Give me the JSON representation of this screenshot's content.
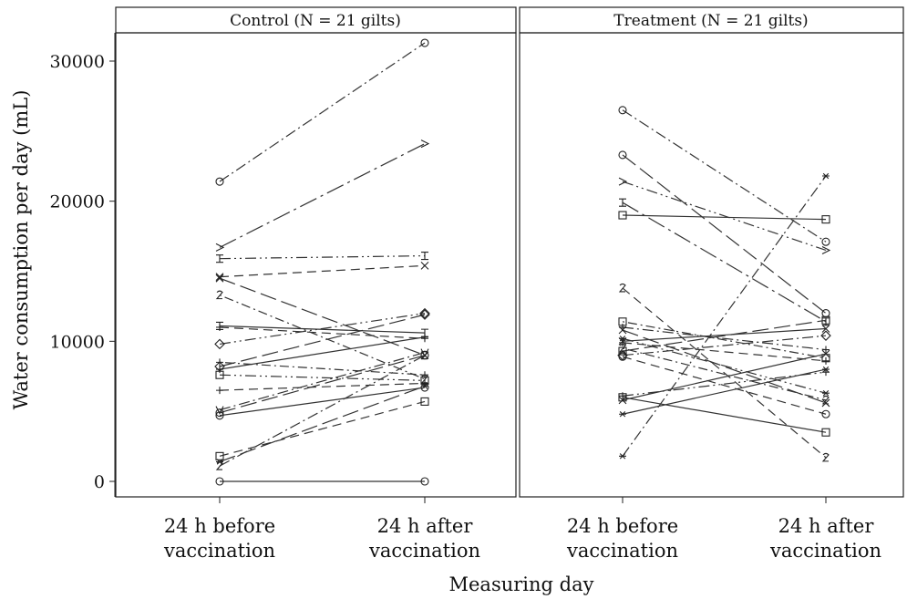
{
  "chart_data": {
    "type": "line",
    "ylabel": "Water consumption per day (mL)",
    "xlabel": "Measuring day",
    "ylim": [
      0,
      32000
    ],
    "yticks": [
      0,
      10000,
      20000,
      30000
    ],
    "categories": [
      {
        "line1": "24 h before",
        "line2": "vaccination"
      },
      {
        "line1": "24 h after",
        "line2": "vaccination"
      }
    ],
    "panels": [
      {
        "title": "Control (N = 21 gilts)",
        "series": [
          {
            "values": [
              21400,
              31300
            ],
            "marker": "o",
            "dash": "dashdot"
          },
          {
            "values": [
              16700,
              24100
            ],
            "marker": ">",
            "dash": "longdash-dot"
          },
          {
            "values": [
              15900,
              16100
            ],
            "marker": "I",
            "dash": "dashdotdot"
          },
          {
            "values": [
              14600,
              15400
            ],
            "marker": "x",
            "dash": "dashed"
          },
          {
            "values": [
              14500,
              9000
            ],
            "marker": "x",
            "dash": "longdash"
          },
          {
            "values": [
              13300,
              7300
            ],
            "marker": "2",
            "dash": "dotdash"
          },
          {
            "values": [
              11100,
              10600
            ],
            "marker": "I",
            "dash": "solid"
          },
          {
            "values": [
              11000,
              10200
            ],
            "marker": "+",
            "dash": "dashed"
          },
          {
            "values": [
              9800,
              12000
            ],
            "marker": "diamond",
            "dash": "dashdotdot"
          },
          {
            "values": [
              8500,
              7600
            ],
            "marker": "+",
            "dash": "dotdash"
          },
          {
            "values": [
              8200,
              11900
            ],
            "marker": "diamond",
            "dash": "longdash"
          },
          {
            "values": [
              8000,
              10300
            ],
            "marker": "+",
            "dash": "solid"
          },
          {
            "values": [
              7600,
              7200
            ],
            "marker": "square",
            "dash": "dashdotdot"
          },
          {
            "values": [
              6500,
              7000
            ],
            "marker": "+",
            "dash": "dashed"
          },
          {
            "values": [
              5100,
              9200
            ],
            "marker": "v",
            "dash": "dashdot"
          },
          {
            "values": [
              4900,
              9000
            ],
            "marker": "o",
            "dash": "longdash"
          },
          {
            "values": [
              4700,
              6700
            ],
            "marker": "o",
            "dash": "solid"
          },
          {
            "values": [
              1800,
              5700
            ],
            "marker": "square",
            "dash": "dashed"
          },
          {
            "values": [
              1400,
              6800
            ],
            "marker": "*",
            "dash": "longdash"
          },
          {
            "values": [
              1100,
              9000
            ],
            "marker": "2",
            "dash": "dashdot"
          },
          {
            "values": [
              0,
              0
            ],
            "marker": "o",
            "dash": "solid"
          }
        ]
      },
      {
        "title": "Treatment (N = 21 gilts)",
        "series": [
          {
            "values": [
              26500,
              17100
            ],
            "marker": "o",
            "dash": "dashdot"
          },
          {
            "values": [
              23300,
              12000
            ],
            "marker": "o",
            "dash": "longdash"
          },
          {
            "values": [
              21400,
              16500
            ],
            "marker": ">",
            "dash": "dashdotdot"
          },
          {
            "values": [
              19900,
              11400
            ],
            "marker": "I",
            "dash": "longdash-dot"
          },
          {
            "values": [
              19000,
              18700
            ],
            "marker": "square",
            "dash": "solid"
          },
          {
            "values": [
              13800,
              1700
            ],
            "marker": "2",
            "dash": "dashed"
          },
          {
            "values": [
              11400,
              8800
            ],
            "marker": "square",
            "dash": "dotdash"
          },
          {
            "values": [
              11000,
              9400
            ],
            "marker": "+",
            "dash": "dashdot"
          },
          {
            "values": [
              10800,
              5600
            ],
            "marker": "x",
            "dash": "longdash"
          },
          {
            "values": [
              10200,
              6300
            ],
            "marker": "*",
            "dash": "dashdotdot"
          },
          {
            "values": [
              10000,
              10900
            ],
            "marker": "x",
            "dash": "solid"
          },
          {
            "values": [
              9900,
              8600
            ],
            "marker": "+",
            "dash": "dashed"
          },
          {
            "values": [
              9500,
              5800
            ],
            "marker": "2",
            "dash": "dotdash"
          },
          {
            "values": [
              9300,
              11500
            ],
            "marker": "square",
            "dash": "longdash"
          },
          {
            "values": [
              9000,
              10400
            ],
            "marker": "diamond",
            "dash": "dashdot"
          },
          {
            "values": [
              8900,
              4800
            ],
            "marker": "o",
            "dash": "dashed"
          },
          {
            "values": [
              6100,
              7800
            ],
            "marker": "+",
            "dash": "dashdotdot"
          },
          {
            "values": [
              5800,
              9100
            ],
            "marker": "x",
            "dash": "solid"
          },
          {
            "values": [
              6000,
              3500
            ],
            "marker": "square",
            "dash": "solid"
          },
          {
            "values": [
              4800,
              8000
            ],
            "marker": "*",
            "dash": "solid"
          },
          {
            "values": [
              1800,
              21800
            ],
            "marker": "*",
            "dash": "dashdot"
          }
        ]
      }
    ]
  }
}
